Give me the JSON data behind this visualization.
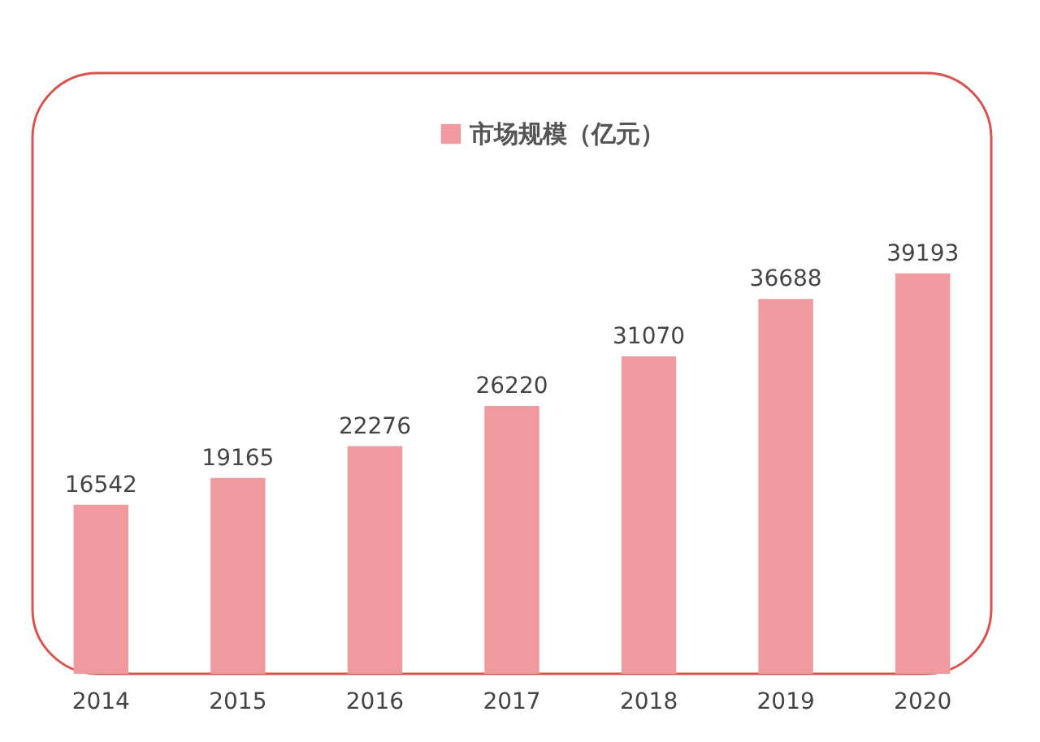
{
  "chart_data": {
    "type": "bar",
    "categories": [
      "2014",
      "2015",
      "2016",
      "2017",
      "2018",
      "2019",
      "2020"
    ],
    "series": [
      {
        "name": "市场规模（亿元）",
        "color": "#f0999e",
        "values": [
          16542,
          19165,
          22276,
          26220,
          31070,
          36688,
          39193
        ]
      }
    ],
    "data_labels": true,
    "legend": "top",
    "grid": false
  }
}
